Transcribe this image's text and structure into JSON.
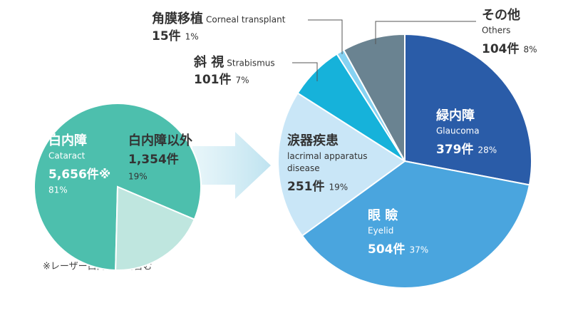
{
  "chart_data": [
    {
      "type": "pie",
      "categories": [
        "白内障",
        "白内障以外"
      ],
      "subtitles": [
        "Cataract",
        null
      ],
      "count_labels": [
        "5,656件※",
        "1,354件"
      ],
      "values": [
        81,
        19
      ],
      "value_labels": [
        "81%",
        "19%"
      ],
      "colors": [
        "#4dbfad",
        "#bfe6df"
      ],
      "note": "※レーザー白内障手術含む"
    },
    {
      "type": "pie",
      "categories": [
        "緑内障",
        "眼 瞼",
        "涙器疾患",
        "斜 視",
        "角膜移植",
        "その他"
      ],
      "subtitles": [
        "Glaucoma",
        "Eyelid",
        "lacrimal apparatus disease",
        "Strabismus",
        "Corneal transplant",
        "Others"
      ],
      "count_labels": [
        "379件",
        "504件",
        "251件",
        "101件",
        "15件",
        "104件"
      ],
      "values": [
        28,
        37,
        19,
        7,
        1,
        8
      ],
      "value_labels": [
        "28%",
        "37%",
        "19%",
        "7%",
        "1%",
        "8%"
      ],
      "colors": [
        "#2a5ca8",
        "#4aa5de",
        "#c9e6f7",
        "#16b2da",
        "#86d2f2",
        "#6a8391"
      ]
    }
  ]
}
